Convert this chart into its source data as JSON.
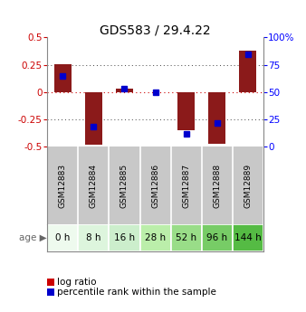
{
  "title": "GDS583 / 29.4.22",
  "samples": [
    "GSM12883",
    "GSM12884",
    "GSM12885",
    "GSM12886",
    "GSM12887",
    "GSM12888",
    "GSM12889"
  ],
  "ages": [
    "0 h",
    "8 h",
    "16 h",
    "28 h",
    "52 h",
    "96 h",
    "144 h"
  ],
  "log_ratios": [
    0.255,
    -0.48,
    0.03,
    0.0,
    -0.35,
    -0.475,
    0.38
  ],
  "percentile_ranks": [
    0.65,
    0.18,
    0.53,
    0.5,
    0.12,
    0.22,
    0.85
  ],
  "ylim": [
    -0.5,
    0.5
  ],
  "yticks_left": [
    -0.5,
    -0.25,
    0.0,
    0.25,
    0.5
  ],
  "yticks_right": [
    0,
    25,
    50,
    75,
    100
  ],
  "bar_color": "#8B1A1A",
  "dot_color": "#0000CD",
  "bar_width": 0.55,
  "dot_size": 25,
  "age_colors": [
    "#eefaee",
    "#ddf5dd",
    "#cceecc",
    "#bbeeaa",
    "#99dd88",
    "#77cc66",
    "#55bb44"
  ],
  "sample_bg_color": "#c8c8c8",
  "hline_color": "#cc0000",
  "dotted_color": "#404040",
  "legend_bar_color": "#cc0000",
  "legend_dot_color": "#0000cc"
}
